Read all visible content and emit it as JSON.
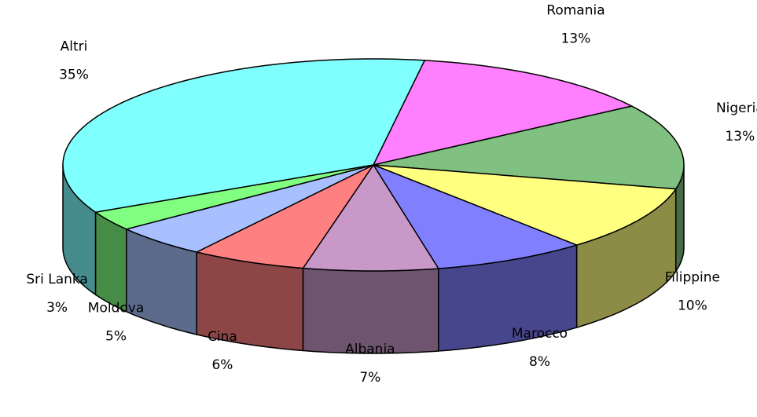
{
  "chart_data": {
    "type": "pie3d",
    "categories": [
      "Romania",
      "Nigeria",
      "Filippine",
      "Marocco",
      "Albania",
      "Cina",
      "Moldova",
      "Sri Lanka",
      "Altri"
    ],
    "values": [
      13,
      13,
      10,
      8,
      7,
      6,
      5,
      3,
      35
    ],
    "value_labels": [
      "13%",
      "13%",
      "10%",
      "8%",
      "7%",
      "6%",
      "5%",
      "3%",
      "35%"
    ],
    "colors": [
      "#ff80ff",
      "#80c080",
      "#ffff80",
      "#8080ff",
      "#c898c8",
      "#ff8080",
      "#a8c0ff",
      "#80ff80",
      "#80ffff"
    ]
  }
}
